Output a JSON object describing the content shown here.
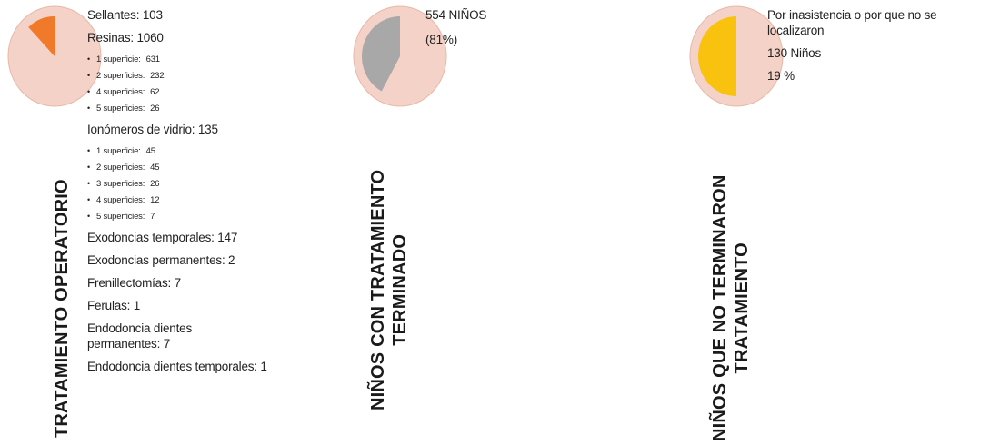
{
  "colors": {
    "pie_background": "#f5d2c8",
    "pie_border": "#e8b8a8",
    "slice_operatorio": "#f07a2a",
    "slice_terminado": "#a8a8a8",
    "slice_no_terminaron": "#f8c20f"
  },
  "panels": [
    {
      "id": "operatorio",
      "vertical_title": [
        "TRATAMIENTO OPERATORIO"
      ],
      "slice_fraction": 0.12,
      "items": [
        {
          "text": "Sellantes: 103"
        },
        {
          "text": "Resinas: 1060",
          "sub": [
            {
              "label": "1 superficie:",
              "value": "631"
            },
            {
              "label": "2 superficies:",
              "value": "232"
            },
            {
              "label": "4 superficies:",
              "value": "62"
            },
            {
              "label": "5 superficies:",
              "value": "26"
            }
          ]
        },
        {
          "text": "Ionómeros de vidrio: 135",
          "sub": [
            {
              "label": "1 superficie:",
              "value": "45"
            },
            {
              "label": "2 superficies:",
              "value": "45"
            },
            {
              "label": "3 superficies:",
              "value": "26"
            },
            {
              "label": "4 superficies:",
              "value": "12"
            },
            {
              "label": "5 superficies:",
              "value": "7"
            }
          ]
        },
        {
          "text": "Exodoncias temporales: 147"
        },
        {
          "text": "Exodoncias permanentes: 2"
        },
        {
          "text": "Frenillectomías: 7"
        },
        {
          "text": "Ferulas: 1"
        },
        {
          "text": "Endodoncia dientes permanentes: 7"
        },
        {
          "text": "Endodoncia dientes temporales: 1"
        }
      ]
    },
    {
      "id": "terminado",
      "vertical_title": [
        "NIÑOS CON TRATAMIENTO",
        "TERMINADO"
      ],
      "slice_fraction": 0.42,
      "items": [
        {
          "text": "554 NIÑOS"
        },
        {
          "text": "(81%)"
        }
      ]
    },
    {
      "id": "no-terminaron",
      "vertical_title": [
        "NIÑOS QUE NO TERMINARON",
        "TRATAMIENTO"
      ],
      "slice_fraction": 0.5,
      "items": [
        {
          "text": "Por inasistencia o por que no se localizaron"
        },
        {
          "text": "130 Niños"
        },
        {
          "text": "19 %"
        }
      ]
    }
  ]
}
